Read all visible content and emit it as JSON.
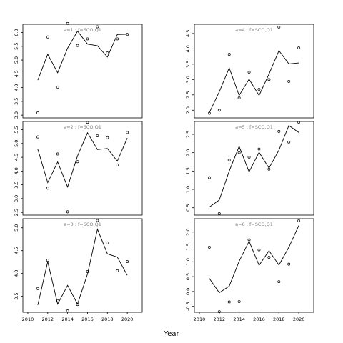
{
  "figure": {
    "xlabel": "Year"
  },
  "chart_data": [
    {
      "type": "line",
      "title": "a=1 : f=SCO,Q1",
      "xlim": [
        2009.5,
        2021.5
      ],
      "ylim": [
        2.9,
        6.3
      ],
      "yticks": [
        "3.0",
        "3.5",
        "4.0",
        "4.5",
        "5.0",
        "5.5",
        "6.0"
      ],
      "xticks": [],
      "line": {
        "x": [
          2011,
          2012,
          2013,
          2014,
          2015,
          2016,
          2017,
          2018,
          2019,
          2020
        ],
        "y": [
          4.27,
          5.21,
          4.54,
          5.43,
          6.05,
          5.58,
          5.52,
          5.11,
          5.93,
          5.94
        ]
      },
      "points": {
        "x": [
          2011,
          2012,
          2013,
          2014,
          2015,
          2016,
          2017,
          2018,
          2019,
          2020
        ],
        "y": [
          3.08,
          5.84,
          4.02,
          6.33,
          5.53,
          5.77,
          6.21,
          5.26,
          5.77,
          5.93
        ]
      }
    },
    {
      "type": "line",
      "title": "a=2 : f=SCO,Q1",
      "xlim": [
        2009.5,
        2021.5
      ],
      "ylim": [
        2.4,
        5.8
      ],
      "yticks": [
        "2.5",
        "3.0",
        "3.5",
        "4.0",
        "4.5",
        "5.0",
        "5.5"
      ],
      "xticks": [],
      "line": {
        "x": [
          2011,
          2012,
          2013,
          2014,
          2015,
          2016,
          2017,
          2018,
          2019,
          2020
        ],
        "y": [
          4.79,
          3.58,
          4.33,
          3.42,
          4.55,
          5.39,
          4.78,
          4.82,
          4.36,
          5.2
        ]
      },
      "points": {
        "x": [
          2011,
          2012,
          2013,
          2014,
          2015,
          2016,
          2017,
          2018,
          2019,
          2020
        ],
        "y": [
          5.24,
          3.38,
          4.62,
          2.52,
          4.34,
          5.77,
          5.28,
          5.21,
          4.22,
          5.4
        ]
      }
    },
    {
      "type": "line",
      "title": "a=3 : f=SCO,Q1",
      "xlim": [
        2009.5,
        2021.5
      ],
      "ylim": [
        3.15,
        5.2
      ],
      "yticks": [
        "3.5",
        "4.0",
        "4.5",
        "5.0"
      ],
      "xticks": [
        "2010",
        "2012",
        "2014",
        "2016",
        "2018",
        "2020"
      ],
      "line": {
        "x": [
          2011,
          2012,
          2013,
          2014,
          2015,
          2016,
          2017,
          2018,
          2019,
          2020
        ],
        "y": [
          3.31,
          4.26,
          3.33,
          3.74,
          3.33,
          3.99,
          4.97,
          4.43,
          4.36,
          3.96
        ]
      },
      "points": {
        "x": [
          2011,
          2012,
          2013,
          2014,
          2015,
          2016,
          2017,
          2018,
          2019,
          2020
        ],
        "y": [
          3.67,
          4.29,
          3.4,
          3.18,
          3.32,
          4.04,
          5.16,
          4.67,
          4.06,
          4.26
        ]
      }
    },
    {
      "type": "line",
      "title": "a=4 : f=SCO,Q1",
      "xlim": [
        2009.5,
        2021.5
      ],
      "ylim": [
        1.75,
        4.8
      ],
      "yticks": [
        "2.0",
        "2.5",
        "3.0",
        "3.5",
        "4.0",
        "4.5"
      ],
      "xticks": [],
      "line": {
        "x": [
          2011,
          2012,
          2013,
          2014,
          2015,
          2016,
          2017,
          2018,
          2019,
          2020
        ],
        "y": [
          1.92,
          2.6,
          3.38,
          2.48,
          3.01,
          2.48,
          3.18,
          3.94,
          3.51,
          3.54
        ]
      },
      "points": {
        "x": [
          2011,
          2012,
          2013,
          2014,
          2015,
          2016,
          2017,
          2018,
          2019,
          2020
        ],
        "y": [
          1.9,
          2.0,
          3.82,
          2.4,
          3.24,
          2.68,
          3.0,
          4.71,
          2.94,
          4.03
        ]
      }
    },
    {
      "type": "line",
      "title": "a=5 : f=SCO,Q1",
      "xlim": [
        2009.5,
        2021.5
      ],
      "ylim": [
        0.3,
        2.85
      ],
      "yticks": [
        "0.5",
        "1.0",
        "1.5",
        "2.0",
        "2.5"
      ],
      "xticks": [],
      "line": {
        "x": [
          2011,
          2012,
          2013,
          2014,
          2015,
          2016,
          2017,
          2018,
          2019,
          2020
        ],
        "y": [
          0.52,
          0.71,
          1.5,
          2.17,
          1.48,
          2.01,
          1.58,
          2.07,
          2.74,
          2.55
        ]
      },
      "points": {
        "x": [
          2011,
          2012,
          2013,
          2014,
          2015,
          2016,
          2017,
          2018,
          2019,
          2020
        ],
        "y": [
          1.32,
          0.34,
          1.8,
          2.0,
          1.88,
          2.1,
          1.55,
          2.58,
          2.29,
          2.83
        ]
      }
    },
    {
      "type": "line",
      "title": "a=6 : f=SCO,Q1",
      "xlim": [
        2009.5,
        2021.5
      ],
      "ylim": [
        -0.7,
        2.45
      ],
      "yticks": [
        "-0.5",
        "0.0",
        "0.5",
        "1.0",
        "1.5",
        "2.0"
      ],
      "xticks": [
        "2010",
        "2012",
        "2014",
        "2016",
        "2018",
        "2020"
      ],
      "line": {
        "x": [
          2011,
          2012,
          2013,
          2014,
          2015,
          2016,
          2017,
          2018,
          2019,
          2020
        ],
        "y": [
          0.44,
          -0.04,
          0.18,
          1.02,
          1.69,
          0.88,
          1.37,
          0.89,
          1.49,
          2.22
        ]
      },
      "points": {
        "x": [
          2011,
          2012,
          2013,
          2014,
          2015,
          2016,
          2017,
          2018,
          2019,
          2020
        ],
        "y": [
          1.49,
          -0.68,
          -0.35,
          -0.34,
          1.74,
          1.4,
          1.15,
          0.33,
          0.92,
          2.38
        ]
      }
    }
  ]
}
